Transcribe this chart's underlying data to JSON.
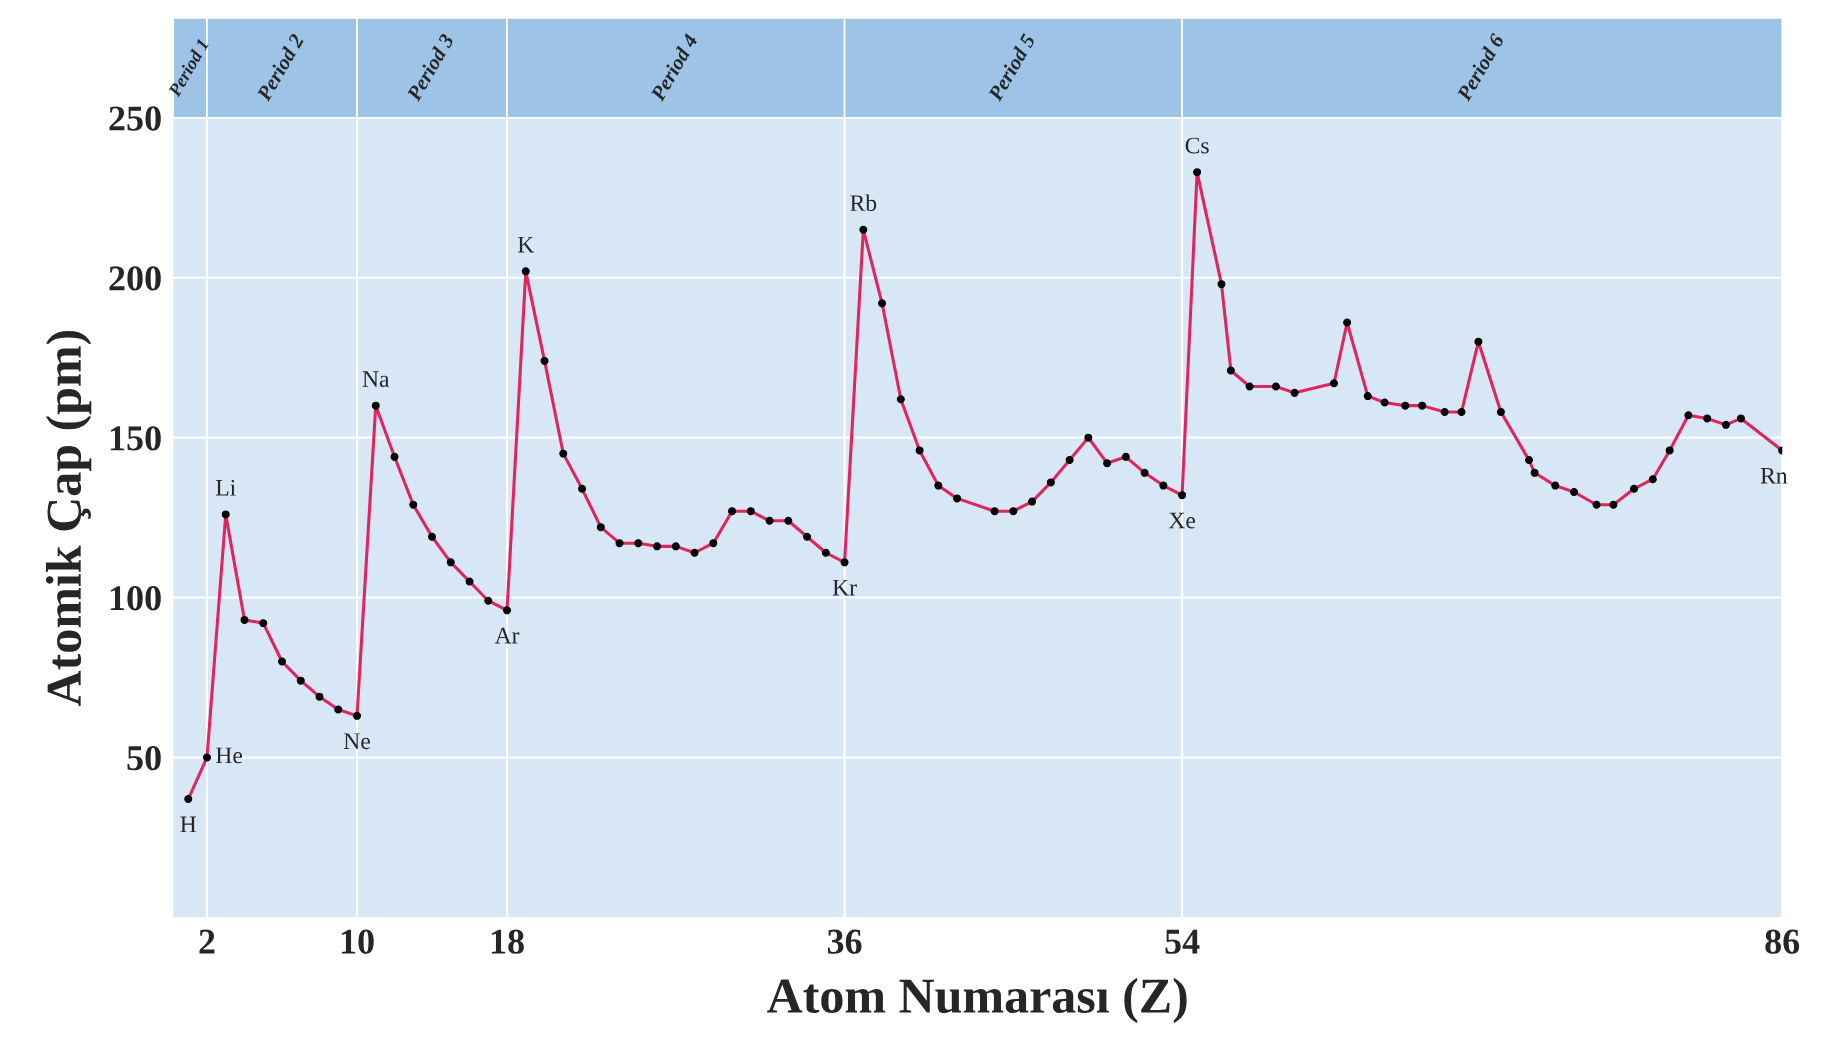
{
  "chart_data": {
    "type": "line",
    "xlabel": "Atom Numarası (Z)",
    "ylabel": "Atomik Çap (pm)",
    "xlim": [
      0.2,
      86
    ],
    "xticks": [
      2,
      10,
      18,
      36,
      54,
      86
    ],
    "ylim": [
      0,
      250
    ],
    "yticks": [
      50,
      100,
      150,
      200,
      250
    ],
    "grid": true,
    "marker": "circle",
    "line_style": "solid",
    "series": [
      {
        "color": "#e0245e",
        "x": [
          1,
          2,
          3,
          4,
          5,
          6,
          7,
          8,
          9,
          10,
          11,
          12,
          13,
          14,
          15,
          16,
          17,
          18,
          19,
          20,
          21,
          22,
          23,
          24,
          25,
          26,
          27,
          28,
          29,
          30,
          31,
          32,
          33,
          34,
          35,
          36,
          37,
          38,
          39,
          40,
          41,
          42,
          44,
          45,
          46,
          47,
          48,
          49,
          50,
          51,
          52,
          53,
          54,
          54.8,
          56.1,
          56.6,
          57.6,
          59.0,
          60.0,
          62.1,
          62.8,
          63.9,
          64.8,
          65.9,
          66.8,
          68.0,
          68.9,
          69.8,
          71.0,
          72.5,
          72.8,
          73.9,
          74.9,
          76.1,
          77.0,
          78.1,
          79.1,
          80.0,
          81.0,
          82.0,
          83.0,
          83.8,
          86.0
        ],
        "values": [
          37,
          50,
          126,
          93,
          92,
          80,
          74,
          69,
          65,
          63,
          160,
          144,
          129,
          119,
          111,
          105,
          99,
          96,
          202,
          174,
          145,
          134,
          122,
          117,
          117,
          116,
          116,
          114,
          117,
          127,
          127,
          124,
          124,
          119,
          114,
          111,
          215,
          192,
          162,
          146,
          135,
          131,
          127,
          127,
          130,
          136,
          143,
          150,
          142,
          144,
          139,
          135,
          132,
          233,
          198,
          171,
          166,
          166,
          164,
          167,
          186,
          163,
          161,
          160,
          160,
          158,
          158,
          180,
          158,
          143,
          139,
          135,
          133,
          129,
          129,
          134,
          137,
          146,
          157,
          156,
          154,
          156,
          146
        ]
      }
    ],
    "bands": [
      {
        "axis": "x",
        "from": 0.2,
        "to": 2,
        "label": "Period 1",
        "color": "#9dc3e6"
      },
      {
        "axis": "x",
        "from": 2,
        "to": 10,
        "label": "Period 2",
        "color": "#9dc3e6"
      },
      {
        "axis": "x",
        "from": 10,
        "to": 18,
        "label": "Period 3",
        "color": "#9dc3e6"
      },
      {
        "axis": "x",
        "from": 18,
        "to": 36,
        "label": "Period 4",
        "color": "#9dc3e6"
      },
      {
        "axis": "x",
        "from": 36,
        "to": 54,
        "label": "Period 5",
        "color": "#9dc3e6"
      },
      {
        "axis": "x",
        "from": 54,
        "to": 86,
        "label": "Period 6",
        "color": "#9dc3e6"
      }
    ],
    "annotations": [
      {
        "text": "H",
        "x": 1,
        "y": 37
      },
      {
        "text": "He",
        "x": 2,
        "y": 50
      },
      {
        "text": "Li",
        "x": 3,
        "y": 126
      },
      {
        "text": "Ne",
        "x": 10,
        "y": 63
      },
      {
        "text": "Na",
        "x": 11,
        "y": 160
      },
      {
        "text": "Ar",
        "x": 18,
        "y": 96
      },
      {
        "text": "K",
        "x": 19,
        "y": 202
      },
      {
        "text": "Kr",
        "x": 36,
        "y": 111
      },
      {
        "text": "Rb",
        "x": 37,
        "y": 215
      },
      {
        "text": "Xe",
        "x": 54,
        "y": 132
      },
      {
        "text": "Cs",
        "x": 54.8,
        "y": 233
      },
      {
        "text": "Rn",
        "x": 86.0,
        "y": 146
      }
    ]
  }
}
